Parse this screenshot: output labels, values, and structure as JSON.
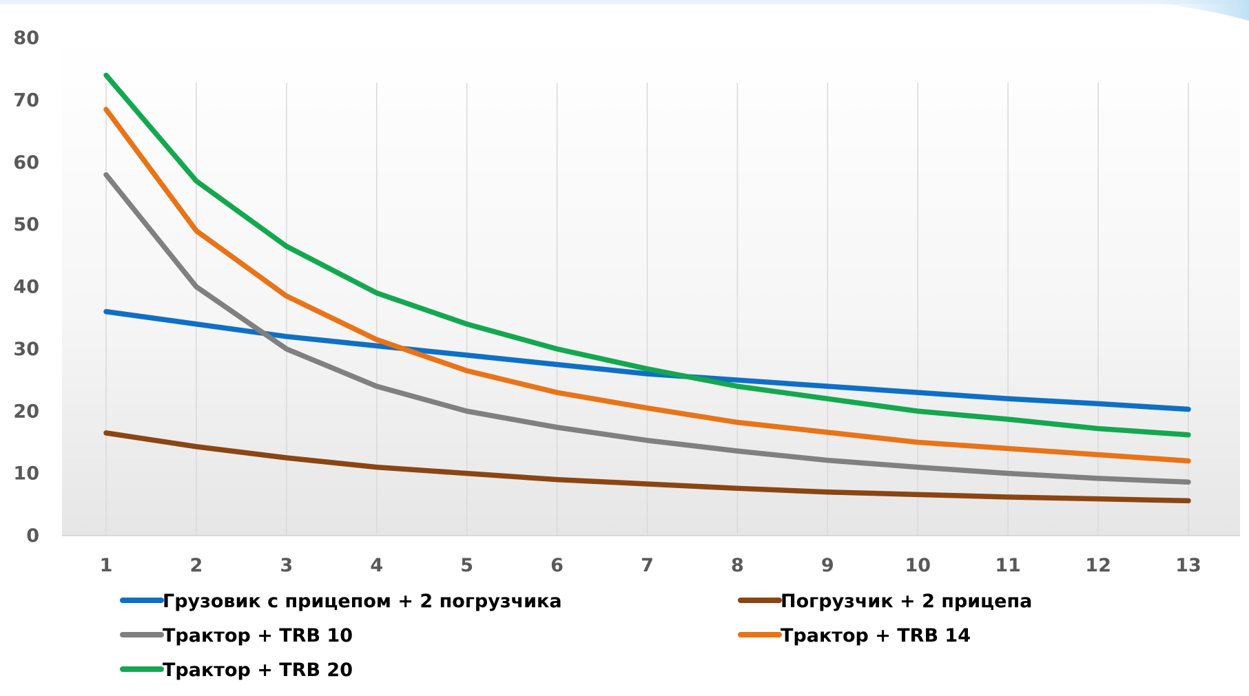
{
  "chart_data": {
    "type": "line",
    "title": "",
    "xlabel": "",
    "ylabel": "",
    "categories": [
      "1",
      "2",
      "3",
      "4",
      "5",
      "6",
      "7",
      "8",
      "9",
      "10",
      "11",
      "12",
      "13"
    ],
    "ylim": [
      0,
      80
    ],
    "yticks": [
      "0",
      "10",
      "20",
      "30",
      "40",
      "50",
      "60",
      "70",
      "80"
    ],
    "grid": "vertical",
    "legend_position": "bottom",
    "series": [
      {
        "name": "Грузовик с прицепом + 2 погрузчика",
        "color": "#0E6FC7",
        "values": [
          36,
          34,
          32,
          30.5,
          29,
          27.5,
          26,
          25,
          24,
          23,
          22,
          21.2,
          20.3
        ]
      },
      {
        "name": "Погрузчик + 2 прицепа",
        "color": "#8B4513",
        "values": [
          16.5,
          14.3,
          12.5,
          11,
          10,
          9,
          8.3,
          7.6,
          7,
          6.6,
          6.2,
          5.9,
          5.6
        ]
      },
      {
        "name": "Трактор + TRB 10",
        "color": "#808080",
        "values": [
          58,
          40,
          30,
          24,
          20,
          17.4,
          15.3,
          13.6,
          12.1,
          11,
          10,
          9.2,
          8.6
        ]
      },
      {
        "name": "Трактор + TRB 14",
        "color": "#E97317",
        "values": [
          68.5,
          49,
          38.5,
          31.5,
          26.5,
          23,
          20.5,
          18.2,
          16.6,
          15,
          14,
          13,
          12
        ]
      },
      {
        "name": "Трактор + TRB 20",
        "color": "#13A84F",
        "values": [
          74,
          57,
          46.5,
          39,
          34,
          30,
          26.8,
          24,
          22,
          20,
          18.7,
          17.2,
          16.2
        ]
      }
    ]
  }
}
